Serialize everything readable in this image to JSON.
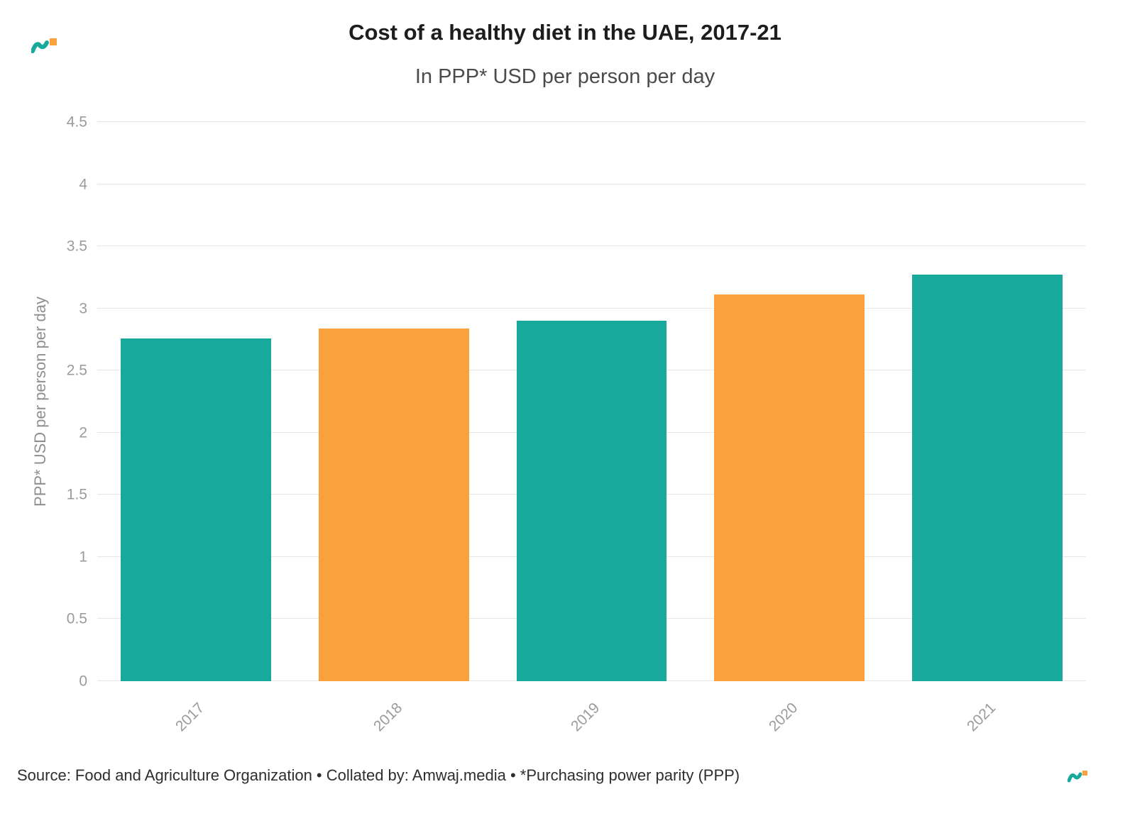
{
  "chart_data": {
    "type": "bar",
    "title": "Cost of a healthy diet in the UAE, 2017-21",
    "subtitle": "In PPP* USD per person per day",
    "categories": [
      "2017",
      "2018",
      "2019",
      "2020",
      "2021"
    ],
    "values": [
      2.76,
      2.84,
      2.9,
      3.11,
      3.27
    ],
    "bar_colors": [
      "#17A99B",
      "#F9A13C",
      "#17A99B",
      "#F9A13C",
      "#17A99B"
    ],
    "xlabel": "",
    "ylabel": "PPP* USD per person per day",
    "ylim": [
      0,
      4.5
    ],
    "yticks": [
      0,
      0.5,
      1,
      1.5,
      2,
      2.5,
      3,
      3.5,
      4,
      4.5
    ],
    "grid": "horizontal",
    "legend_position": "none"
  },
  "footer": {
    "source": "Source: Food and Agriculture Organization • Collated by: Amwaj.media • *Purchasing power parity (PPP)"
  },
  "icons": {
    "top_left_logo": "amwaj-media-logo",
    "bottom_right_logo": "amwaj-media-logo"
  },
  "colors": {
    "teal": "#17A99B",
    "orange": "#F9A13C",
    "gridline": "#e6e6e6",
    "axis_text": "#9b9b9b",
    "title_text": "#1d1d1d",
    "subtitle_text": "#4b4b4b",
    "source_text": "#2e2e2e",
    "background": "#ffffff"
  }
}
